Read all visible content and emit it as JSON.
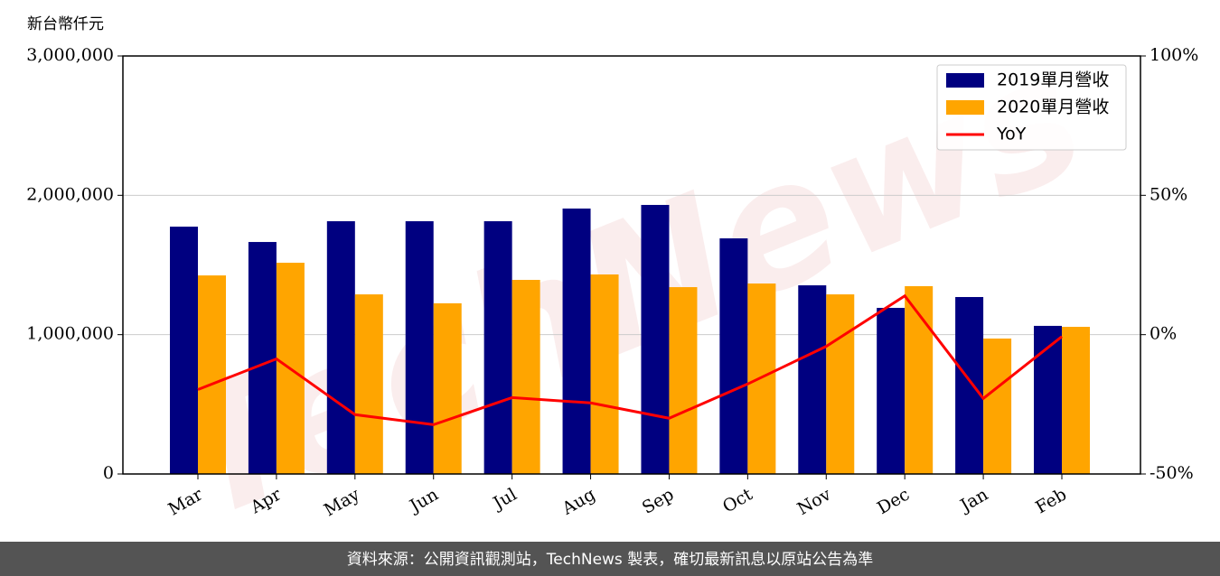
{
  "chart_data": {
    "type": "bar",
    "ylabel": "新台幣仟元",
    "watermark": "TechNews",
    "footer": "資料來源：公開資訊觀測站，TechNews 製表，確切最新訊息以原站公告為準",
    "categories": [
      "Mar",
      "Apr",
      "May",
      "Jun",
      "Jul",
      "Aug",
      "Sep",
      "Oct",
      "Nov",
      "Dec",
      "Jan",
      "Feb"
    ],
    "series": [
      {
        "name": "2019單月營收",
        "color": "#000080",
        "type": "bar",
        "values": [
          1775000,
          1665000,
          1814000,
          1814000,
          1814000,
          1905000,
          1931000,
          1691000,
          1354000,
          1192000,
          1270000,
          1063000
        ]
      },
      {
        "name": "2020單月營收",
        "color": "#ffa500",
        "type": "bar",
        "values": [
          1425000,
          1516000,
          1289000,
          1225000,
          1393000,
          1432000,
          1341000,
          1367000,
          1289000,
          1348000,
          972000,
          1056000
        ]
      },
      {
        "name": "YoY",
        "color": "#ff0000",
        "type": "line",
        "axis": "y2",
        "values": [
          -19.7,
          -8.7,
          -28.7,
          -32.3,
          -22.6,
          -24.5,
          -30,
          -17.7,
          -4.2,
          13.9,
          -22.9,
          -0.7
        ]
      }
    ],
    "ylim": [
      0,
      3000000
    ],
    "yticks": [
      0,
      {
        "value": 1000000,
        "label": "1,000,000"
      },
      {
        "value": 2000000,
        "label": "2,000,000"
      },
      {
        "value": 3000000,
        "label": "3,000,000"
      }
    ],
    "y2lim": [
      -50,
      100
    ],
    "y2ticks": [
      {
        "value": -50,
        "label": "-50%"
      },
      {
        "value": 0,
        "label": "0%"
      },
      {
        "value": 50,
        "label": "50%"
      },
      {
        "value": 100,
        "label": "100%"
      }
    ],
    "grid": true,
    "legend": "upper right"
  }
}
